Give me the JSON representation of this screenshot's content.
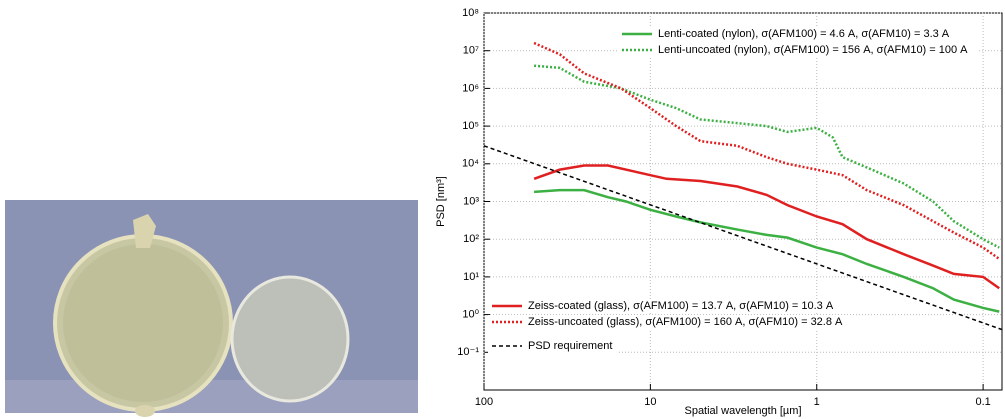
{
  "chart_data": {
    "type": "line",
    "xlabel": "Spatial wavelength [µm]",
    "ylabel": "PSD [nm³]",
    "xscale": "log",
    "yscale": "log",
    "grid": true,
    "xlim": [
      100,
      0.077
    ],
    "ylim": [
      0.01,
      100000000
    ],
    "xticks": [
      100,
      10,
      1,
      0.1
    ],
    "yticks": [
      {
        "value": 0.1,
        "label": "10⁻¹"
      },
      {
        "value": 1,
        "label": "10⁰"
      },
      {
        "value": 10,
        "label": "10¹"
      },
      {
        "value": 100,
        "label": "10²"
      },
      {
        "value": 1000,
        "label": "10³"
      },
      {
        "value": 10000,
        "label": "10⁴"
      },
      {
        "value": 100000,
        "label": "10⁵"
      },
      {
        "value": 1000000,
        "label": "10⁶"
      },
      {
        "value": 10000000,
        "label": "10⁷"
      },
      {
        "value": 100000000,
        "label": "10⁸"
      }
    ],
    "series": [
      {
        "name": "Lenti-coated (nylon), σ(AFM100) = 4.6 A,  σ(AFM10) = 3.3 A",
        "color": "#3cb043",
        "style": "solid",
        "x": [
          50,
          35,
          25,
          18,
          14,
          10,
          7,
          5,
          3,
          2,
          1.5,
          1,
          0.7,
          0.5,
          0.3,
          0.2,
          0.15,
          0.1,
          0.08
        ],
        "values": [
          1800,
          2000,
          2000,
          1300,
          1000,
          600,
          400,
          280,
          180,
          130,
          110,
          60,
          40,
          22,
          10,
          5,
          2.5,
          1.5,
          1.2
        ]
      },
      {
        "name": "Lenti-uncoated (nylon), σ(AFM100) = 156 A,  σ(AFM10) = 100 A",
        "color": "#3cb043",
        "style": "dotted",
        "x": [
          50,
          35,
          25,
          15,
          10,
          7,
          5,
          3,
          2,
          1.5,
          1,
          0.8,
          0.7,
          0.5,
          0.3,
          0.2,
          0.15,
          0.1,
          0.08
        ],
        "values": [
          4000000,
          3500000,
          1500000,
          1000000,
          500000,
          300000,
          150000,
          120000,
          100000,
          70000,
          90000,
          50000,
          15000,
          8000,
          3000,
          1000,
          300,
          100,
          60
        ]
      },
      {
        "name": "Zeiss-coated (glass), σ(AFM100) = 13.7 A,  σ(AFM10) = 10.3 A",
        "color": "#e02020",
        "style": "solid",
        "x": [
          50,
          35,
          25,
          18,
          12,
          8,
          5,
          3,
          2,
          1.5,
          1,
          0.7,
          0.5,
          0.3,
          0.2,
          0.15,
          0.1,
          0.08
        ],
        "values": [
          4000,
          7000,
          9000,
          9000,
          6000,
          4000,
          3500,
          2500,
          1500,
          800,
          400,
          250,
          100,
          40,
          20,
          12,
          10,
          5
        ]
      },
      {
        "name": "Zeiss-uncoated (glass), σ(AFM100) = 160 A,  σ(AFM10) = 32.8 A",
        "color": "#e02020",
        "style": "dotted",
        "x": [
          50,
          35,
          25,
          15,
          10,
          7,
          5,
          3,
          2,
          1.5,
          1,
          0.7,
          0.5,
          0.3,
          0.2,
          0.15,
          0.1,
          0.08
        ],
        "values": [
          16000000,
          8000000,
          2500000,
          1000000,
          300000,
          100000,
          40000,
          30000,
          15000,
          10000,
          7000,
          5000,
          2000,
          800,
          300,
          150,
          60,
          30
        ]
      },
      {
        "name": "PSD requirement",
        "color": "#000000",
        "style": "dashed",
        "x": [
          100,
          0.077
        ],
        "values": [
          30000,
          0.4
        ]
      }
    ]
  }
}
